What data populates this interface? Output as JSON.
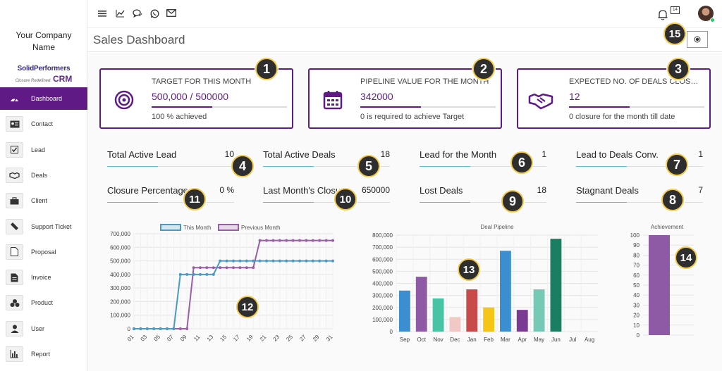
{
  "company": {
    "line1": "Your Company",
    "line2": "Name"
  },
  "logo": {
    "brand": "SolidPerformers",
    "tagline": "Closure Redefined.",
    "product": "CRM"
  },
  "sidebar": {
    "items": [
      {
        "label": "Dashboard",
        "icon": "dashboard-icon"
      },
      {
        "label": "Contact",
        "icon": "contact-card-icon"
      },
      {
        "label": "Lead",
        "icon": "checkbox-icon"
      },
      {
        "label": "Deals",
        "icon": "handshake-icon"
      },
      {
        "label": "Client",
        "icon": "briefcase-icon"
      },
      {
        "label": "Support Ticket",
        "icon": "ticket-icon"
      },
      {
        "label": "Proposal",
        "icon": "document-icon"
      },
      {
        "label": "Invoice",
        "icon": "invoice-icon"
      },
      {
        "label": "Product",
        "icon": "cubes-icon"
      },
      {
        "label": "User",
        "icon": "user-icon"
      },
      {
        "label": "Report",
        "icon": "bar-chart-icon"
      }
    ]
  },
  "topbar": {
    "notif_count": "14"
  },
  "page": {
    "title": "Sales Dashboard"
  },
  "cards": [
    {
      "title": "TARGET FOR THIS MONTH",
      "value": "500,000 / 500000",
      "sub": "100 % achieved",
      "progress": 0.45
    },
    {
      "title": "PIPELINE VALUE FOR THE MONTH",
      "value": "342000",
      "sub": "0 is required to achieve Target",
      "progress": 0.45
    },
    {
      "title": "EXPECTED NO. OF DEALS CLOSURE FOR THE MONTH",
      "value": "12",
      "sub": "0 closure for the month till date",
      "progress": 0.45
    }
  ],
  "stats": [
    {
      "label": "Total Active Lead",
      "value": "10"
    },
    {
      "label": "Total Active Deals",
      "value": "18"
    },
    {
      "label": "Lead for the Month",
      "value": "1"
    },
    {
      "label": "Lead to Deals Conv.",
      "value": "1"
    },
    {
      "label": "Closure Percentage",
      "value": "0 %"
    },
    {
      "label": "Last Month's Closure",
      "value": "650000"
    },
    {
      "label": "Lost Deals",
      "value": "18"
    },
    {
      "label": "Stagnant Deals",
      "value": "7"
    }
  ],
  "badges": [
    "1",
    "2",
    "3",
    "4",
    "5",
    "6",
    "7",
    "8",
    "9",
    "10",
    "11",
    "12",
    "13",
    "14",
    "15"
  ],
  "chart_data": [
    {
      "type": "line",
      "x": [
        "01",
        "02",
        "03",
        "04",
        "05",
        "06",
        "07",
        "08",
        "09",
        "10",
        "11",
        "12",
        "13",
        "14",
        "15",
        "16",
        "17",
        "18",
        "19",
        "20",
        "21",
        "22",
        "23",
        "24",
        "25",
        "26",
        "27",
        "28",
        "29",
        "30",
        "31"
      ],
      "x_tick_labels": [
        "01",
        "03",
        "05",
        "07",
        "09",
        "11",
        "13",
        "15",
        "17",
        "19",
        "21",
        "23",
        "25",
        "27",
        "29",
        "31"
      ],
      "series": [
        {
          "name": "This Month",
          "color": "#4a9ac6",
          "values": [
            0,
            0,
            0,
            0,
            0,
            0,
            0,
            400000,
            400000,
            400000,
            400000,
            400000,
            400000,
            500000,
            500000,
            500000,
            500000,
            500000,
            500000,
            500000,
            500000,
            500000,
            500000,
            500000,
            500000,
            500000,
            500000,
            500000,
            500000,
            500000,
            500000
          ]
        },
        {
          "name": "Previous Month",
          "color": "#9a5ea8",
          "values": [
            0,
            0,
            0,
            0,
            0,
            0,
            0,
            0,
            0,
            450000,
            450000,
            450000,
            450000,
            450000,
            450000,
            450000,
            450000,
            450000,
            450000,
            650000,
            650000,
            650000,
            650000,
            650000,
            650000,
            650000,
            650000,
            650000,
            650000,
            650000,
            650000
          ]
        }
      ],
      "ylim": [
        0,
        700000
      ],
      "y_ticks": [
        "0",
        "100,000",
        "200,000",
        "300,000",
        "400,000",
        "500,000",
        "600,000",
        "700,000"
      ],
      "legend": "top",
      "grid": true
    },
    {
      "type": "bar",
      "title": "Deal Pipeline",
      "categories": [
        "Sep",
        "Oct",
        "Nov",
        "Dec",
        "Jan",
        "Feb",
        "Mar",
        "Apr",
        "May",
        "Jun",
        "Jul",
        "Aug"
      ],
      "values": [
        340000,
        455000,
        275000,
        120000,
        350000,
        200000,
        670000,
        180000,
        350000,
        770000,
        0,
        0
      ],
      "colors": [
        "#3b8fd0",
        "#8e5aa5",
        "#48c4a5",
        "#f0c8c4",
        "#c94a4a",
        "#f5c518",
        "#3b8fd0",
        "#7a3b92",
        "#76c9b5",
        "#1a7f62",
        "#ccc",
        "#ccc"
      ],
      "ylim": [
        0,
        800000
      ],
      "y_ticks": [
        "0",
        "100,000",
        "200,000",
        "300,000",
        "400,000",
        "500,000",
        "600,000",
        "700,000",
        "800,000"
      ],
      "grid": true
    },
    {
      "type": "bar",
      "title": "Achievement",
      "categories": [
        ""
      ],
      "values": [
        100
      ],
      "colors": [
        "#8e5aa5"
      ],
      "ylim": [
        0,
        100
      ],
      "y_ticks": [
        "0",
        "10",
        "20",
        "30",
        "40",
        "50",
        "60",
        "70",
        "80",
        "90",
        "100"
      ],
      "grid": true
    }
  ]
}
